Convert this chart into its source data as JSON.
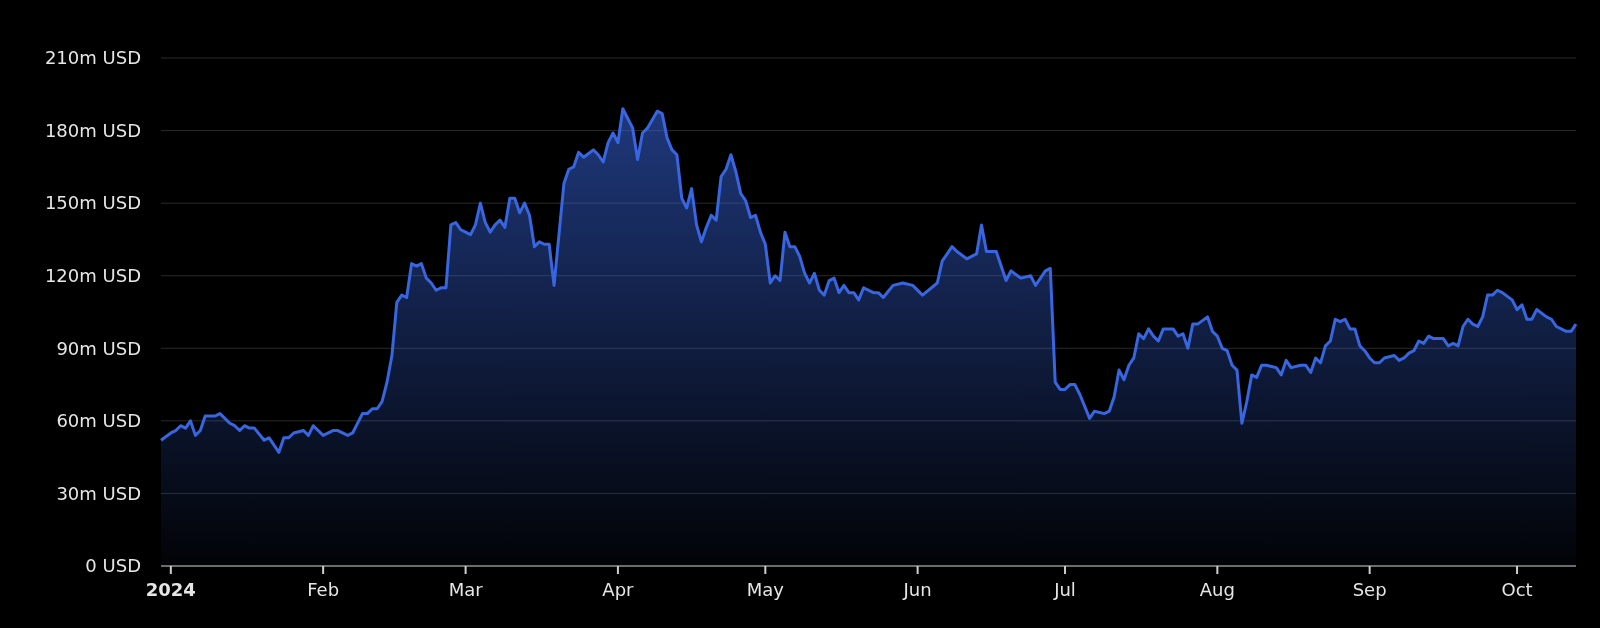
{
  "chart_data": {
    "type": "area",
    "grid": "y",
    "xlim": [
      "2023-12-30",
      "2024-10-13"
    ],
    "xticks": [
      {
        "value": "2024-01-01",
        "label": "2024"
      },
      {
        "value": "2024-02-01",
        "label": "Feb"
      },
      {
        "value": "2024-03-01",
        "label": "Mar"
      },
      {
        "value": "2024-04-01",
        "label": "Apr"
      },
      {
        "value": "2024-05-01",
        "label": "May"
      },
      {
        "value": "2024-06-01",
        "label": "Jun"
      },
      {
        "value": "2024-07-01",
        "label": "Jul"
      },
      {
        "value": "2024-08-01",
        "label": "Aug"
      },
      {
        "value": "2024-09-01",
        "label": "Sep"
      },
      {
        "value": "2024-10-01",
        "label": "Oct"
      }
    ],
    "ylim": [
      0,
      210
    ],
    "yticks": [
      {
        "value": 0,
        "label": "0 USD"
      },
      {
        "value": 30,
        "label": "30m USD"
      },
      {
        "value": 60,
        "label": "60m USD"
      },
      {
        "value": 90,
        "label": "90m USD"
      },
      {
        "value": 120,
        "label": "120m USD"
      },
      {
        "value": 150,
        "label": "150m USD"
      },
      {
        "value": 180,
        "label": "180m USD"
      },
      {
        "value": 210,
        "label": "210m USD"
      }
    ],
    "x": [
      "2023-12-30",
      "2024-01-01",
      "2024-01-02",
      "2024-01-03",
      "2024-01-04",
      "2024-01-05",
      "2024-01-06",
      "2024-01-07",
      "2024-01-08",
      "2024-01-10",
      "2024-01-11",
      "2024-01-12",
      "2024-01-13",
      "2024-01-14",
      "2024-01-15",
      "2024-01-16",
      "2024-01-17",
      "2024-01-18",
      "2024-01-20",
      "2024-01-21",
      "2024-01-22",
      "2024-01-23",
      "2024-01-24",
      "2024-01-25",
      "2024-01-26",
      "2024-01-28",
      "2024-01-29",
      "2024-01-30",
      "2024-02-01",
      "2024-02-03",
      "2024-02-04",
      "2024-02-06",
      "2024-02-07",
      "2024-02-09",
      "2024-02-10",
      "2024-02-11",
      "2024-02-12",
      "2024-02-13",
      "2024-02-14",
      "2024-02-15",
      "2024-02-16",
      "2024-02-17",
      "2024-02-18",
      "2024-02-19",
      "2024-02-20",
      "2024-02-21",
      "2024-02-22",
      "2024-02-23",
      "2024-02-24",
      "2024-02-25",
      "2024-02-26",
      "2024-02-27",
      "2024-02-28",
      "2024-02-29",
      "2024-03-01",
      "2024-03-02",
      "2024-03-03",
      "2024-03-04",
      "2024-03-05",
      "2024-03-06",
      "2024-03-07",
      "2024-03-08",
      "2024-03-09",
      "2024-03-10",
      "2024-03-11",
      "2024-03-12",
      "2024-03-13",
      "2024-03-14",
      "2024-03-15",
      "2024-03-16",
      "2024-03-17",
      "2024-03-18",
      "2024-03-19",
      "2024-03-21",
      "2024-03-22",
      "2024-03-23",
      "2024-03-24",
      "2024-03-25",
      "2024-03-27",
      "2024-03-28",
      "2024-03-29",
      "2024-03-30",
      "2024-03-31",
      "2024-04-01",
      "2024-04-02",
      "2024-04-04",
      "2024-04-05",
      "2024-04-06",
      "2024-04-07",
      "2024-04-09",
      "2024-04-10",
      "2024-04-11",
      "2024-04-12",
      "2024-04-13",
      "2024-04-14",
      "2024-04-15",
      "2024-04-16",
      "2024-04-17",
      "2024-04-18",
      "2024-04-19",
      "2024-04-20",
      "2024-04-21",
      "2024-04-22",
      "2024-04-23",
      "2024-04-24",
      "2024-04-25",
      "2024-04-26",
      "2024-04-27",
      "2024-04-28",
      "2024-04-29",
      "2024-04-30",
      "2024-05-01",
      "2024-05-02",
      "2024-05-03",
      "2024-05-04",
      "2024-05-05",
      "2024-05-06",
      "2024-05-07",
      "2024-05-08",
      "2024-05-09",
      "2024-05-10",
      "2024-05-11",
      "2024-05-12",
      "2024-05-13",
      "2024-05-14",
      "2024-05-15",
      "2024-05-16",
      "2024-05-17",
      "2024-05-18",
      "2024-05-19",
      "2024-05-20",
      "2024-05-21",
      "2024-05-23",
      "2024-05-24",
      "2024-05-25",
      "2024-05-27",
      "2024-05-29",
      "2024-05-31",
      "2024-06-02",
      "2024-06-05",
      "2024-06-06",
      "2024-06-08",
      "2024-06-09",
      "2024-06-11",
      "2024-06-13",
      "2024-06-14",
      "2024-06-15",
      "2024-06-17",
      "2024-06-19",
      "2024-06-20",
      "2024-06-22",
      "2024-06-24",
      "2024-06-25",
      "2024-06-27",
      "2024-06-28",
      "2024-06-29",
      "2024-06-30",
      "2024-07-01",
      "2024-07-02",
      "2024-07-03",
      "2024-07-04",
      "2024-07-06",
      "2024-07-07",
      "2024-07-09",
      "2024-07-10",
      "2024-07-11",
      "2024-07-12",
      "2024-07-13",
      "2024-07-14",
      "2024-07-15",
      "2024-07-16",
      "2024-07-17",
      "2024-07-18",
      "2024-07-19",
      "2024-07-20",
      "2024-07-21",
      "2024-07-23",
      "2024-07-24",
      "2024-07-25",
      "2024-07-26",
      "2024-07-27",
      "2024-07-28",
      "2024-07-30",
      "2024-07-31",
      "2024-08-01",
      "2024-08-02",
      "2024-08-03",
      "2024-08-04",
      "2024-08-05",
      "2024-08-06",
      "2024-08-07",
      "2024-08-08",
      "2024-08-09",
      "2024-08-10",
      "2024-08-11",
      "2024-08-13",
      "2024-08-14",
      "2024-08-15",
      "2024-08-16",
      "2024-08-18",
      "2024-08-19",
      "2024-08-20",
      "2024-08-21",
      "2024-08-22",
      "2024-08-23",
      "2024-08-24",
      "2024-08-25",
      "2024-08-26",
      "2024-08-27",
      "2024-08-28",
      "2024-08-29",
      "2024-08-30",
      "2024-08-31",
      "2024-09-01",
      "2024-09-02",
      "2024-09-03",
      "2024-09-04",
      "2024-09-06",
      "2024-09-07",
      "2024-09-08",
      "2024-09-09",
      "2024-09-10",
      "2024-09-11",
      "2024-09-12",
      "2024-09-13",
      "2024-09-14",
      "2024-09-16",
      "2024-09-17",
      "2024-09-18",
      "2024-09-19",
      "2024-09-20",
      "2024-09-21",
      "2024-09-22",
      "2024-09-23",
      "2024-09-24",
      "2024-09-25",
      "2024-09-26",
      "2024-09-27",
      "2024-09-28",
      "2024-09-30",
      "2024-10-01",
      "2024-10-02",
      "2024-10-03",
      "2024-10-04",
      "2024-10-05",
      "2024-10-07",
      "2024-10-08",
      "2024-10-09",
      "2024-10-11",
      "2024-10-12",
      "2024-10-13"
    ],
    "series": [
      {
        "color": "#3866e0",
        "values": [
          52,
          55,
          56,
          58,
          57,
          60,
          54,
          56,
          62,
          62,
          63,
          61,
          59,
          58,
          56,
          58,
          57,
          57,
          52,
          53,
          50,
          47,
          53,
          53,
          55,
          56,
          54,
          58,
          54,
          56,
          56,
          54,
          55,
          63,
          63,
          65,
          65,
          68,
          76,
          87,
          109,
          112,
          111,
          125,
          124,
          125,
          119,
          117,
          114,
          115,
          115,
          141,
          142,
          139,
          138,
          137,
          141,
          150,
          142,
          138,
          141,
          143,
          140,
          152,
          152,
          146,
          150,
          145,
          132,
          134,
          133,
          133,
          116,
          158,
          164,
          165,
          171,
          169,
          172,
          170,
          167,
          175,
          179,
          175,
          189,
          181,
          168,
          179,
          181,
          188,
          187,
          177,
          172,
          170,
          152,
          148,
          156,
          141,
          134,
          140,
          145,
          143,
          161,
          164,
          170,
          163,
          154,
          151,
          144,
          145,
          138,
          133,
          117,
          120,
          118,
          138,
          132,
          132,
          128,
          121,
          117,
          121,
          114,
          112,
          118,
          119,
          113,
          116,
          113,
          113,
          110,
          115,
          113,
          113,
          111,
          116,
          117,
          116,
          112,
          117,
          126,
          132,
          130,
          127,
          129,
          141,
          130,
          130,
          118,
          122,
          119,
          120,
          116,
          122,
          123,
          76,
          73,
          73,
          75,
          75,
          71,
          61,
          64,
          63,
          64,
          70,
          81,
          77,
          83,
          86,
          96,
          94,
          98,
          95,
          93,
          98,
          98,
          95,
          96,
          90,
          100,
          100,
          103,
          97,
          95,
          90,
          89,
          83,
          81,
          59,
          68,
          79,
          78,
          83,
          83,
          82,
          79,
          85,
          82,
          83,
          83,
          80,
          86,
          84,
          91,
          93,
          102,
          101,
          102,
          98,
          98,
          91,
          89,
          86,
          84,
          84,
          86,
          87,
          85,
          86,
          88,
          89,
          93,
          92,
          95,
          94,
          94,
          91,
          92,
          91,
          99,
          102,
          100,
          99,
          103,
          112,
          112,
          114,
          113,
          110,
          106,
          108,
          102,
          102,
          106,
          103,
          102,
          99,
          97,
          97,
          100
        ]
      }
    ]
  }
}
